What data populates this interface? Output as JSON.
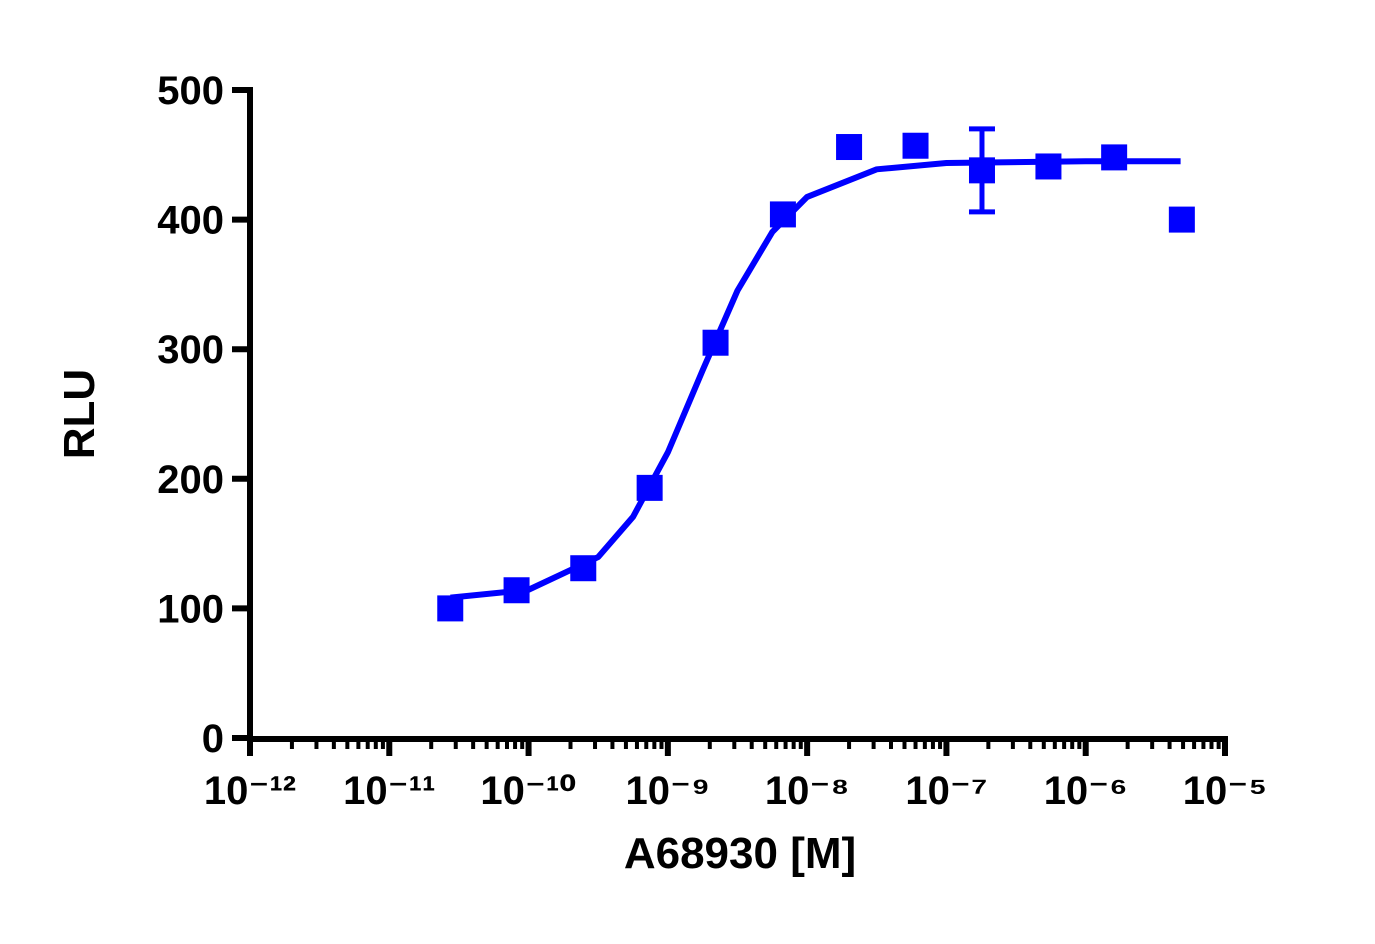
{
  "chart_data": {
    "type": "scatter",
    "x_label": "A68930 [M]",
    "y_label": "RLU",
    "xscale": "log",
    "color": "#0000ff",
    "x": [
      2.74e-11,
      8.2e-11,
      2.47e-10,
      7.4e-10,
      2.2e-09,
      6.7e-09,
      2e-08,
      6e-08,
      1.8e-07,
      5.4e-07,
      1.6e-06,
      4.9e-06
    ],
    "values": [
      100,
      114,
      131,
      193,
      305,
      404,
      456,
      457,
      438,
      441,
      448,
      400
    ],
    "errors": [
      null,
      null,
      null,
      null,
      null,
      null,
      null,
      null,
      32,
      null,
      null,
      null
    ],
    "curve": {
      "x": [
        2.75e-11,
        1e-10,
        3.16e-10,
        5.62e-10,
        1e-09,
        1.78e-09,
        3.16e-09,
        5.62e-09,
        1e-08,
        3.16e-08,
        1e-07,
        1e-06,
        4.8e-06
      ],
      "values": [
        108.3,
        114.4,
        139.6,
        170.6,
        220.4,
        283.9,
        345.2,
        390.4,
        417.5,
        438.8,
        443.7,
        445,
        445
      ]
    },
    "xlim": [
      1e-12,
      1e-05
    ],
    "xticks": [
      {
        "value": 1e-12,
        "label": "10⁻¹²"
      },
      {
        "value": 1e-11,
        "label": "10⁻¹¹"
      },
      {
        "value": 1e-10,
        "label": "10⁻¹⁰"
      },
      {
        "value": 1e-09,
        "label": "10⁻⁹"
      },
      {
        "value": 1e-08,
        "label": "10⁻⁸"
      },
      {
        "value": 1e-07,
        "label": "10⁻⁷"
      },
      {
        "value": 1e-06,
        "label": "10⁻⁶"
      },
      {
        "value": 1e-05,
        "label": "10⁻⁵"
      }
    ],
    "xminorticks": [
      2e-12,
      3e-12,
      4e-12,
      5e-12,
      6e-12,
      7e-12,
      8e-12,
      9e-12,
      2e-11,
      3e-11,
      4e-11,
      5e-11,
      6e-11,
      7e-11,
      8e-11,
      9e-11,
      2e-10,
      3e-10,
      4e-10,
      5e-10,
      6e-10,
      7e-10,
      8e-10,
      9e-10,
      2e-09,
      3e-09,
      4e-09,
      5e-09,
      6e-09,
      7e-09,
      8e-09,
      9e-09,
      2e-08,
      3e-08,
      4e-08,
      5e-08,
      6e-08,
      7e-08,
      8e-08,
      9e-08,
      2e-07,
      3e-07,
      4e-07,
      5e-07,
      6e-07,
      7e-07,
      8e-07,
      9e-07,
      2e-06,
      3e-06,
      4e-06,
      5e-06,
      6e-06,
      7e-06,
      8e-06,
      9e-06
    ],
    "ylim": [
      0,
      500
    ],
    "yticks": [
      0,
      100,
      200,
      300,
      400,
      500
    ]
  }
}
